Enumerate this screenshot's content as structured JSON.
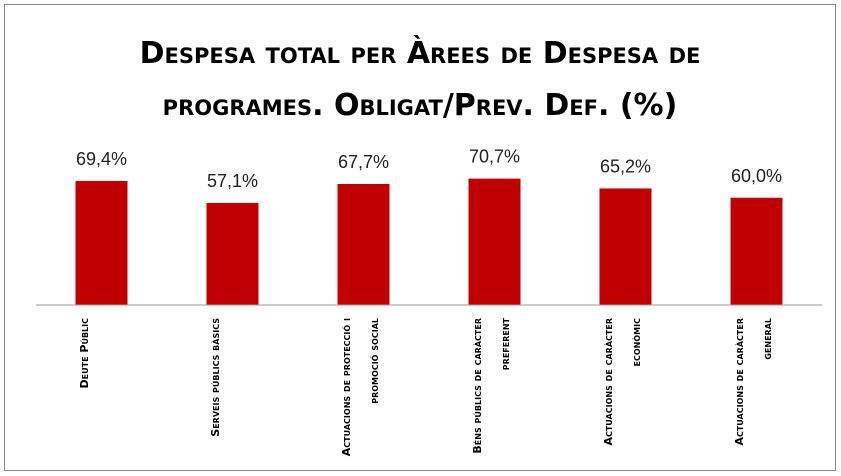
{
  "chart_data": {
    "type": "bar",
    "title": "Despesa total per Àrees de Despesa de programes. Obligat/Prev. Def. (%)",
    "categories": [
      "Deute Públic",
      "Serveis públics bàsics",
      "Actuacions de protecció i promoció social",
      "Béns públics de caràcter preferent",
      "Actuacions de caràcter econòmic",
      "Actuacions de caràcter general"
    ],
    "values": [
      69.4,
      57.1,
      67.7,
      70.7,
      65.2,
      60.0
    ],
    "value_labels": [
      "69,4%",
      "57,1%",
      "67,7%",
      "70,7%",
      "65,2%",
      "60,0%"
    ],
    "color": "#c00000",
    "ylim": [
      0,
      80
    ]
  }
}
